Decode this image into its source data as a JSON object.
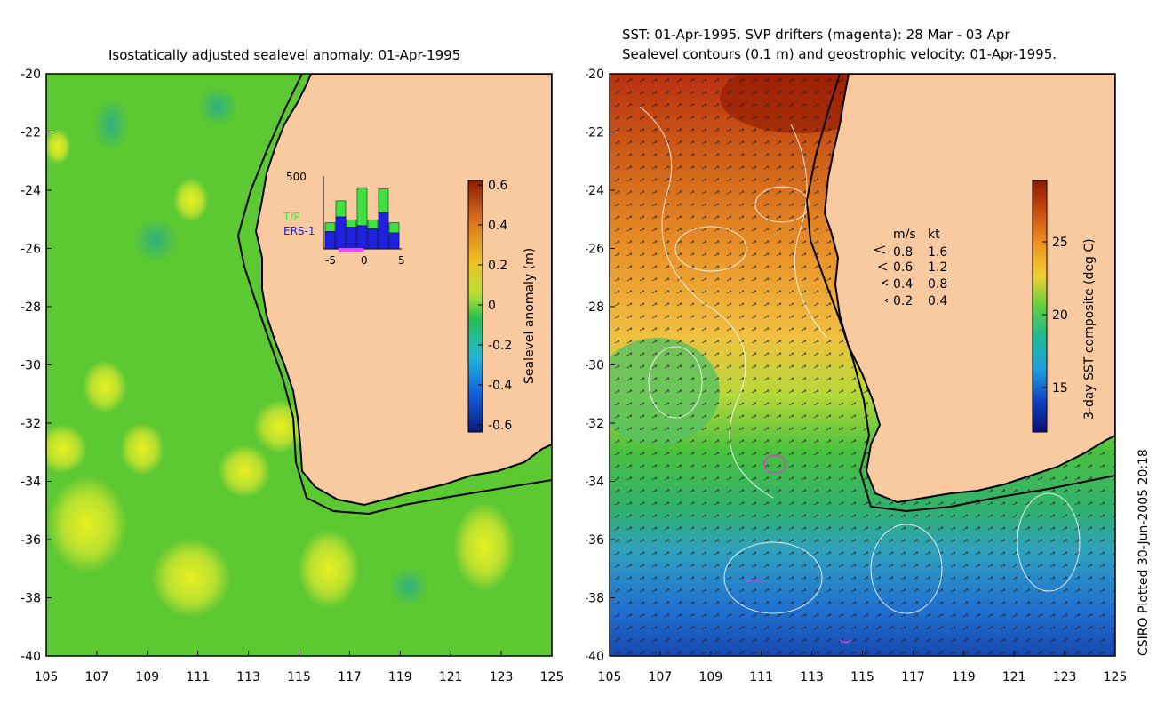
{
  "left_panel": {
    "title": "Isostatically adjusted sealevel anomaly: 01-Apr-1995",
    "colorbar": {
      "label": "Sealevel anomaly (m)",
      "ticks": [
        "0.6",
        "0.4",
        "0.2",
        "0",
        "-0.2",
        "-0.4",
        "-0.6"
      ],
      "stops": [
        "#8b1a00",
        "#d2691e",
        "#f0c020",
        "#b8e030",
        "#22c050",
        "#20b8d8",
        "#1060e0",
        "#0a1a80"
      ]
    },
    "histogram": {
      "y_max_label": "500",
      "legend": [
        "T/P",
        "ERS-1"
      ],
      "x_ticks": [
        "-5",
        "0",
        "5"
      ],
      "tp_values": [
        180,
        330,
        200,
        420,
        200,
        410,
        180
      ],
      "ers_values": [
        120,
        220,
        150,
        160,
        140,
        250,
        110
      ],
      "colors": {
        "tp": "#40e040",
        "ers": "#2020e0",
        "marker": "#ff40ff"
      }
    }
  },
  "right_panel": {
    "title_line1": "SST: 01-Apr-1995. SVP drifters (magenta): 28 Mar - 03 Apr",
    "title_line2": "Sealevel contours (0.1 m) and geostrophic velocity: 01-Apr-1995.",
    "colorbar": {
      "label": "3-day SST composite (deg C)",
      "ticks": [
        "25",
        "20",
        "15"
      ],
      "stops": [
        "#8b1a00",
        "#c84a10",
        "#f09020",
        "#f0d030",
        "#60d040",
        "#20b890",
        "#20a0e0",
        "#1040c0",
        "#0a1070"
      ]
    },
    "velocity_legend": {
      "header_ms": "m/s",
      "header_kt": "kt",
      "rows": [
        {
          "ms": "0.8",
          "kt": "1.6"
        },
        {
          "ms": "0.6",
          "kt": "1.2"
        },
        {
          "ms": "0.4",
          "kt": "0.8"
        },
        {
          "ms": "0.2",
          "kt": "0.4"
        }
      ]
    }
  },
  "axes": {
    "lat_labels": [
      "-20",
      "-22",
      "-24",
      "-26",
      "-28",
      "-30",
      "-32",
      "-34",
      "-36",
      "-38",
      "-40"
    ],
    "lon_labels": [
      "105",
      "107",
      "109",
      "111",
      "113",
      "115",
      "117",
      "119",
      "121",
      "123",
      "125"
    ],
    "lat_range": [
      -40,
      -20
    ],
    "lon_range": [
      105,
      125
    ]
  },
  "credit": "CSIRO Plotted 30-Jun-2005 20:18",
  "colors": {
    "land": "#f9c9a0",
    "coast": "#000000",
    "ocean_left": "#66cc33",
    "drifter": "#cc44cc"
  }
}
